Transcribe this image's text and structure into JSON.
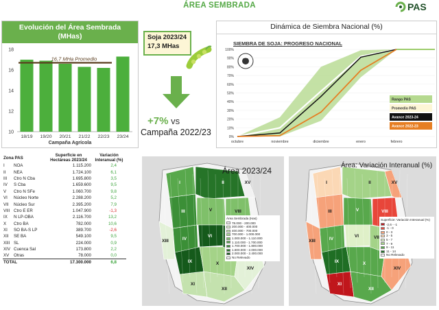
{
  "header": {
    "title": "ÁREA SEMBRADA",
    "logo": "PAS"
  },
  "area_chart": {
    "title_line1": "Evolución del Área Sembrada",
    "title_line2": "(MHas)"
  },
  "soy_box": {
    "line1": "Soja 2023/24",
    "line2": "17,3 MHas"
  },
  "change": {
    "value": "+7%",
    "suffix": "vs",
    "campaign": "Campaña 2022/23"
  },
  "dynamics": {
    "title": "Dinámica de Siembra Nacional (%)",
    "subtitle": "SIEMBRA DE SOJA: PROGRESO NACIONAL"
  },
  "chart_data": [
    {
      "type": "bar",
      "title": "Evolución del Área Sembrada (MHas)",
      "categories": [
        "18/19",
        "19/20",
        "20/21",
        "21/22",
        "22/23",
        "23/24"
      ],
      "values": [
        17.0,
        16.9,
        16.6,
        16.3,
        16.2,
        17.3
      ],
      "xlabel": "Campaña Agrícola",
      "ylabel": "",
      "ylim": [
        10,
        18
      ],
      "yticks": [
        "10",
        "12",
        "14",
        "16",
        "18"
      ],
      "reference_line": {
        "label": "16,7 MHa Promedio",
        "value": 16.7
      },
      "bar_color": "#4caf3c"
    },
    {
      "type": "area",
      "title": "SIEMBRA DE SOJA: PROGRESO NACIONAL",
      "x": [
        "octubre",
        "noviembre",
        "diciembre",
        "enero",
        "febrero"
      ],
      "yticks": [
        "0%",
        "10%",
        "20%",
        "30%",
        "40%",
        "50%",
        "60%",
        "70%",
        "80%",
        "90%",
        "100%"
      ],
      "ylim": [
        0,
        100
      ],
      "legend": [
        "Rango PAS",
        "Promedio PAS",
        "Avance 2023-24",
        "Avance 2022-23"
      ],
      "legend_colors": [
        "#b5d98f",
        "#ffffff",
        "#111111",
        "#e67e22"
      ],
      "series": [
        {
          "name": "Rango PAS min",
          "values": [
            0,
            0,
            18,
            68,
            100
          ]
        },
        {
          "name": "Rango PAS max",
          "values": [
            0,
            22,
            80,
            99,
            100
          ]
        },
        {
          "name": "Promedio PAS",
          "values": [
            0,
            10,
            52,
            92,
            100
          ]
        },
        {
          "name": "Avance 2023-24",
          "values": [
            0,
            4,
            46,
            91,
            100
          ]
        },
        {
          "name": "Avance 2022-23",
          "values": [
            0,
            1,
            28,
            76,
            100
          ]
        }
      ]
    }
  ],
  "zones_table": {
    "headers": [
      "Zona PAS",
      "Superficie en Hectáreas 2023/24",
      "Variación Interanual (%)"
    ],
    "rows": [
      {
        "num": "I",
        "zone": "NOA",
        "area": "1.115.200",
        "var": "2,4",
        "color": "#3aa33a"
      },
      {
        "num": "II",
        "zone": "NEA",
        "area": "1.724.100",
        "var": "6,1",
        "color": "#3aa33a"
      },
      {
        "num": "III",
        "zone": "Ctro N Cba",
        "area": "1.695.800",
        "var": "3,5",
        "color": "#3aa33a"
      },
      {
        "num": "IV",
        "zone": "S Cba",
        "area": "1.659.600",
        "var": "9,5",
        "color": "#3aa33a"
      },
      {
        "num": "V",
        "zone": "Ctro N SFe",
        "area": "1.060.700",
        "var": "9,8",
        "color": "#3aa33a"
      },
      {
        "num": "VI",
        "zone": "Núcleo Norte",
        "area": "2.288.200",
        "var": "5,2",
        "color": "#3aa33a"
      },
      {
        "num": "VII",
        "zone": "Núcleo Sur",
        "area": "2.395.200",
        "var": "7,9",
        "color": "#3aa33a"
      },
      {
        "num": "VIII",
        "zone": "Ctro E ER",
        "area": "1.047.900",
        "var": "-1,3",
        "color": "#d62728"
      },
      {
        "num": "IX",
        "zone": "N LP-OBA",
        "area": "2.116.700",
        "var": "13,2",
        "color": "#3aa33a"
      },
      {
        "num": "X",
        "zone": "Ctro BA",
        "area": "782.000",
        "var": "10,6",
        "color": "#3aa33a"
      },
      {
        "num": "XI",
        "zone": "SO BA-S LP",
        "area": "389.700",
        "var": "-2,6",
        "color": "#d62728"
      },
      {
        "num": "XII",
        "zone": "SE BA",
        "area": "549.100",
        "var": "9,5",
        "color": "#3aa33a"
      },
      {
        "num": "XIII",
        "zone": "SL",
        "area": "224.000",
        "var": "0,9",
        "color": "#3aa33a"
      },
      {
        "num": "XIV",
        "zone": "Cuenca Sal",
        "area": "173.800",
        "var": "2,2",
        "color": "#3aa33a"
      },
      {
        "num": "XV",
        "zone": "Otras",
        "area": "78.000",
        "var": "0,0",
        "color": "#3aa33a"
      }
    ],
    "total": {
      "label": "TOTAL",
      "area": "17.300.000",
      "var": "6,8"
    }
  },
  "map_area": {
    "title": "Área 2023/24",
    "legend_title": "Área Sembrada (Has)",
    "legend": [
      {
        "label": "78.000 - 200.000",
        "color": "#f2f2f2"
      },
      {
        "label": "200.000 - 400.000",
        "color": "#e3f1d8"
      },
      {
        "label": "400.000 - 700.000",
        "color": "#c4e2ae"
      },
      {
        "label": "700.000 - 1.000.000",
        "color": "#a4d388"
      },
      {
        "label": "1.000.000 - 1.110.000",
        "color": "#7fc06a"
      },
      {
        "label": "1.110.000 - 1.700.000",
        "color": "#58a84c"
      },
      {
        "label": "1.700.000 - 1.800.000",
        "color": "#3b8f37"
      },
      {
        "label": "1.800.000 - 2.000.000",
        "color": "#267428"
      },
      {
        "label": "2.000.000 - 2.400.000",
        "color": "#155a1b"
      },
      {
        "label": "No Relevado",
        "color": "#ffffff"
      }
    ]
  },
  "map_var": {
    "title": "Área: Variación Interanual (%)",
    "legend_title": "Superficie: Variación Interanual (%)",
    "legend": [
      {
        "label": "-2,6 - -1",
        "color": "#c0161c"
      },
      {
        "label": "-1 - 0",
        "color": "#e8463a"
      },
      {
        "label": "0 - 3",
        "color": "#f6a27a"
      },
      {
        "label": "3 - 5",
        "color": "#fbd8b5"
      },
      {
        "label": "5 - 7",
        "color": "#dff0c8"
      },
      {
        "label": "7 - 9",
        "color": "#a4d388"
      },
      {
        "label": "9 - 11",
        "color": "#58a84c"
      },
      {
        "label": "11 - 14",
        "color": "#1f6e24"
      },
      {
        "label": "No Relevado",
        "color": "#ffffff"
      }
    ]
  },
  "map_zone_labels": [
    "I",
    "II",
    "III",
    "IV",
    "V",
    "VI",
    "VII",
    "VIII",
    "IX",
    "X",
    "XI",
    "XII",
    "XIII",
    "XIV",
    "XV"
  ]
}
